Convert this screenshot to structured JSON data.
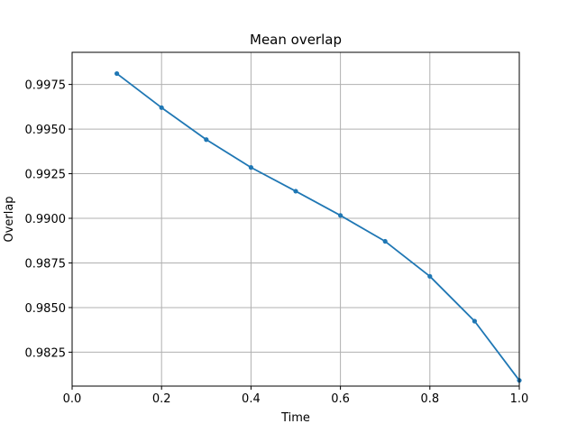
{
  "chart_data": {
    "type": "line",
    "title": "Mean overlap",
    "xlabel": "Time",
    "ylabel": "Overlap",
    "xlim": [
      0.0,
      1.0
    ],
    "ylim": [
      0.9806,
      0.9993
    ],
    "grid": true,
    "x_ticks": [
      0.0,
      0.2,
      0.4,
      0.6,
      0.8,
      1.0
    ],
    "x_tick_labels": [
      "0.0",
      "0.2",
      "0.4",
      "0.6",
      "0.8",
      "1.0"
    ],
    "y_ticks": [
      0.9825,
      0.985,
      0.9875,
      0.99,
      0.9925,
      0.995,
      0.9975
    ],
    "y_tick_labels": [
      "0.9825",
      "0.9850",
      "0.9875",
      "0.9900",
      "0.9925",
      "0.9950",
      "0.9975"
    ],
    "series": [
      {
        "color": "#1f77b4",
        "marker": "dot",
        "x": [
          0.1,
          0.2,
          0.3,
          0.4,
          0.5,
          0.6,
          0.7,
          0.8,
          0.9,
          1.0
        ],
        "y": [
          0.99811,
          0.9962,
          0.99441,
          0.99285,
          0.99152,
          0.99016,
          0.98871,
          0.98675,
          0.98424,
          0.98092
        ]
      }
    ]
  }
}
